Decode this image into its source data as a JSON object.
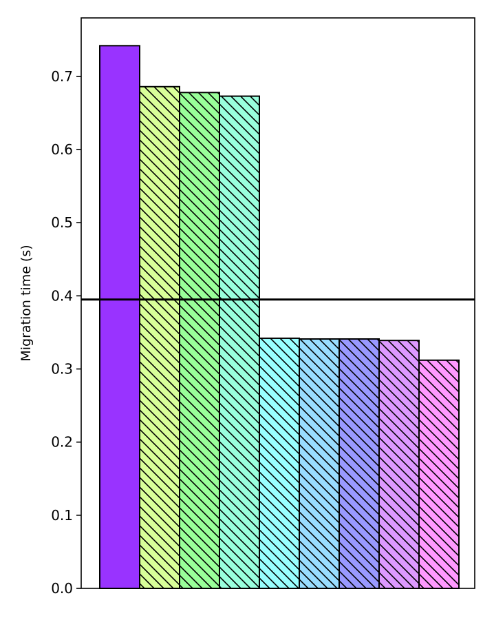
{
  "chart_data": {
    "type": "bar",
    "title": "",
    "xlabel": "",
    "ylabel": "Migration time (s)",
    "ylim": [
      0,
      0.78
    ],
    "yticks": [
      "0.0",
      "0.1",
      "0.2",
      "0.3",
      "0.4",
      "0.5",
      "0.6",
      "0.7"
    ],
    "grid": false,
    "reference_line": {
      "y": 0.395,
      "color": "#000000"
    },
    "bars": [
      {
        "value": 0.742,
        "color": "#9933ff",
        "hatch": false
      },
      {
        "value": 0.686,
        "color": "#d9ff99",
        "hatch": true
      },
      {
        "value": 0.678,
        "color": "#99ff99",
        "hatch": true
      },
      {
        "value": 0.673,
        "color": "#99ffdd",
        "hatch": true
      },
      {
        "value": 0.342,
        "color": "#99ffff",
        "hatch": true
      },
      {
        "value": 0.341,
        "color": "#99ddff",
        "hatch": true
      },
      {
        "value": 0.341,
        "color": "#9999ff",
        "hatch": true
      },
      {
        "value": 0.339,
        "color": "#dd99ff",
        "hatch": true
      },
      {
        "value": 0.312,
        "color": "#ff99ff",
        "hatch": true
      }
    ]
  }
}
